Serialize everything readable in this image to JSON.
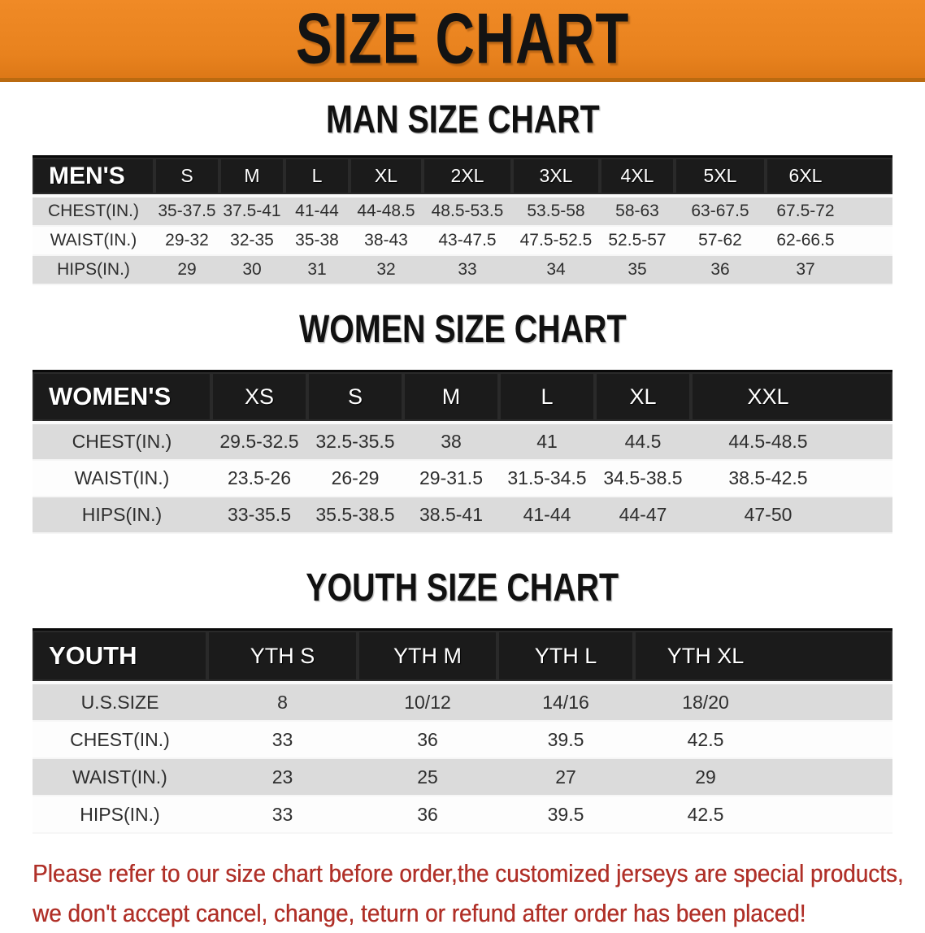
{
  "banner": {
    "title": "SIZE CHART"
  },
  "colors": {
    "banner_orange": "#E8821E",
    "banner_border": "#BA6A10",
    "header_black": "#1B1B1B",
    "row_gray": "#DBDBDB",
    "row_white": "#FDFDFD",
    "disclaimer_red": "#B03028"
  },
  "sections": [
    {
      "id": "men",
      "heading": "MAN SIZE CHART",
      "table": {
        "label": "MEN'S",
        "columns": [
          "S",
          "M",
          "L",
          "XL",
          "2XL",
          "3XL",
          "4XL",
          "5XL",
          "6XL"
        ],
        "rows": [
          {
            "label": "CHEST(IN.)",
            "values": [
              "35-37.5",
              "37.5-41",
              "41-44",
              "44-48.5",
              "48.5-53.5",
              "53.5-58",
              "58-63",
              "63-67.5",
              "67.5-72"
            ]
          },
          {
            "label": "WAIST(IN.)",
            "values": [
              "29-32",
              "32-35",
              "35-38",
              "38-43",
              "43-47.5",
              "47.5-52.5",
              "52.5-57",
              "57-62",
              "62-66.5"
            ]
          },
          {
            "label": "HIPS(IN.)",
            "values": [
              "29",
              "30",
              "31",
              "32",
              "33",
              "34",
              "35",
              "36",
              "37"
            ]
          }
        ]
      }
    },
    {
      "id": "women",
      "heading": "WOMEN SIZE CHART",
      "table": {
        "label": "WOMEN'S",
        "columns": [
          "XS",
          "S",
          "M",
          "L",
          "XL",
          "XXL"
        ],
        "rows": [
          {
            "label": "CHEST(IN.)",
            "values": [
              "29.5-32.5",
              "32.5-35.5",
              "38",
              "41",
              "44.5",
              "44.5-48.5"
            ]
          },
          {
            "label": "WAIST(IN.)",
            "values": [
              "23.5-26",
              "26-29",
              "29-31.5",
              "31.5-34.5",
              "34.5-38.5",
              "38.5-42.5"
            ]
          },
          {
            "label": "HIPS(IN.)",
            "values": [
              "33-35.5",
              "35.5-38.5",
              "38.5-41",
              "41-44",
              "44-47",
              "47-50"
            ]
          }
        ]
      }
    },
    {
      "id": "youth",
      "heading": "YOUTH SIZE CHART",
      "table": {
        "label": "YOUTH",
        "columns": [
          "YTH S",
          "YTH M",
          "YTH L",
          "YTH XL"
        ],
        "rows": [
          {
            "label": "U.S.SIZE",
            "values": [
              "8",
              "10/12",
              "14/16",
              "18/20"
            ]
          },
          {
            "label": "CHEST(IN.)",
            "values": [
              "33",
              "36",
              "39.5",
              "42.5"
            ]
          },
          {
            "label": "WAIST(IN.)",
            "values": [
              "23",
              "25",
              "27",
              "29"
            ]
          },
          {
            "label": "HIPS(IN.)",
            "values": [
              "33",
              "36",
              "39.5",
              "42.5"
            ]
          }
        ]
      }
    }
  ],
  "disclaimer": {
    "line1": "Please refer to our size chart before order,the customized jerseys are special products,",
    "line2": "we don't accept cancel, change, teturn or refund after order has been placed!"
  }
}
